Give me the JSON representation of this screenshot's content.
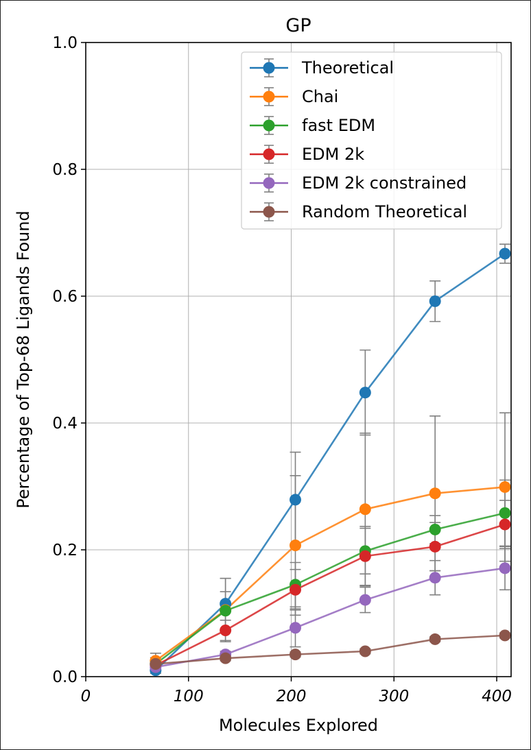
{
  "chart_data": {
    "type": "line",
    "title": "GP",
    "xlabel": "Molecules Explored",
    "ylabel": "Percentage of Top-68 Ligands Found",
    "xlim": [
      0,
      414
    ],
    "ylim": [
      0,
      1.0
    ],
    "xticks": [
      0,
      100,
      200,
      300,
      400
    ],
    "xtick_labels": [
      "0",
      "100",
      "200",
      "300",
      "400"
    ],
    "yticks": [
      0.0,
      0.2,
      0.4,
      0.6,
      0.8,
      1.0
    ],
    "ytick_labels": [
      "0.0",
      "0.2",
      "0.4",
      "0.6",
      "0.8",
      "1.0"
    ],
    "grid": true,
    "legend_position": "top-right",
    "x": [
      68,
      136,
      204,
      272,
      340,
      408
    ],
    "series": [
      {
        "name": "Theoretical",
        "color": "#1f77b4",
        "values": [
          0.01,
          0.115,
          0.279,
          0.448,
          0.592,
          0.667
        ],
        "err": [
          0.005,
          0.04,
          0.075,
          0.067,
          0.032,
          0.015
        ]
      },
      {
        "name": "Chai",
        "color": "#ff7f0e",
        "values": [
          0.025,
          0.105,
          0.207,
          0.264,
          0.289,
          0.299
        ],
        "err": [
          0.012,
          0.05,
          0.11,
          0.12,
          0.122,
          0.117
        ]
      },
      {
        "name": "fast EDM",
        "color": "#2ca02c",
        "values": [
          0.02,
          0.104,
          0.145,
          0.198,
          0.232,
          0.258
        ],
        "err": [
          0.01,
          0.03,
          0.035,
          0.036,
          0.022,
          0.052
        ]
      },
      {
        "name": "EDM 2k",
        "color": "#d62728",
        "values": [
          0.018,
          0.073,
          0.137,
          0.19,
          0.205,
          0.24
        ],
        "err": [
          0.008,
          0.016,
          0.032,
          0.047,
          0.038,
          0.038
        ]
      },
      {
        "name": "EDM 2k constrained",
        "color": "#9467bd",
        "values": [
          0.015,
          0.035,
          0.077,
          0.121,
          0.156,
          0.171
        ],
        "err": [
          0.008,
          0.005,
          0.03,
          0.02,
          0.027,
          0.034
        ]
      },
      {
        "name": "Random Theoretical",
        "color": "#8c564b",
        "values": [
          0.02,
          0.029,
          0.035,
          0.04,
          0.059,
          0.065
        ],
        "err": [
          0.004,
          0.004,
          0.004,
          0.004,
          0.004,
          0.004
        ]
      }
    ]
  }
}
